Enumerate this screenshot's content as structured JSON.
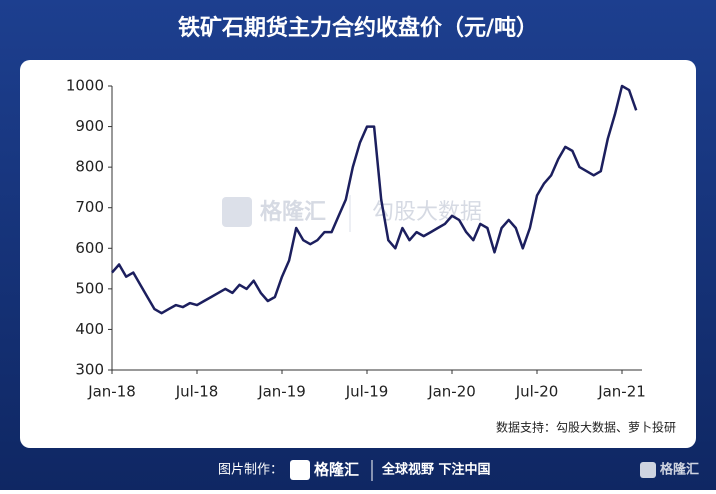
{
  "chart_data": {
    "type": "line",
    "title": "铁矿石期货主力合约收盘价（元/吨）",
    "categories": [
      "Jan-18",
      null,
      null,
      null,
      null,
      null,
      null,
      null,
      null,
      null,
      null,
      null,
      "Jul-18",
      null,
      null,
      null,
      null,
      null,
      null,
      null,
      null,
      null,
      null,
      null,
      "Jan-19",
      null,
      null,
      null,
      null,
      null,
      null,
      null,
      null,
      null,
      null,
      null,
      "Jul-19",
      null,
      null,
      null,
      null,
      null,
      null,
      null,
      null,
      null,
      null,
      null,
      "Jan-20",
      null,
      null,
      null,
      null,
      null,
      null,
      null,
      null,
      null,
      null,
      null,
      "Jul-20",
      null,
      null,
      null,
      null,
      null,
      null,
      null,
      null,
      null,
      null,
      null,
      "Jan-21",
      null,
      null
    ],
    "values": [
      540,
      560,
      530,
      540,
      510,
      480,
      450,
      440,
      450,
      460,
      455,
      465,
      460,
      470,
      480,
      490,
      500,
      490,
      510,
      500,
      520,
      490,
      470,
      480,
      530,
      570,
      650,
      620,
      610,
      620,
      640,
      640,
      680,
      720,
      800,
      860,
      900,
      900,
      720,
      620,
      600,
      650,
      620,
      640,
      630,
      640,
      650,
      660,
      680,
      670,
      640,
      620,
      660,
      650,
      590,
      650,
      670,
      650,
      600,
      650,
      730,
      760,
      780,
      820,
      850,
      840,
      800,
      790,
      780,
      790,
      870,
      930,
      1000,
      990,
      940
    ],
    "color": "#1c1f5e",
    "ylim": [
      300,
      1000
    ],
    "yticks": [
      300,
      400,
      500,
      600,
      700,
      800,
      900,
      1000
    ],
    "source": "数据支持：勾股大数据、萝卜投研"
  },
  "watermark": {
    "brand": "格隆汇",
    "partner": "勾股大数据"
  },
  "footer": {
    "made_by": "图片制作：",
    "brand": "格隆汇",
    "slogan": "全球视野 下注中国",
    "corner_brand": "格隆汇"
  }
}
